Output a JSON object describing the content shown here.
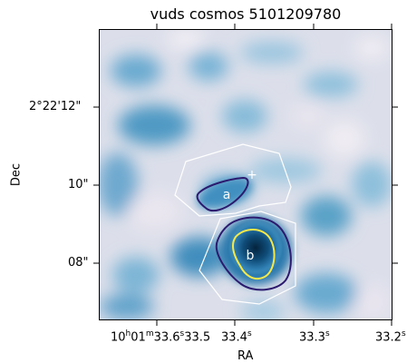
{
  "title": "vuds cosmos 5101209780",
  "xlabel": "RA",
  "ylabel": "Dec",
  "x_ticks": [
    {
      "h": "10",
      "m": "01",
      "s": "33.6",
      "tail": "33.5"
    },
    {
      "s": "33.4"
    },
    {
      "s": "33.3"
    },
    {
      "s": "33.2"
    }
  ],
  "y_ticks": [
    "2°22'12\"",
    "10\"",
    "08\""
  ],
  "markers": {
    "cross": "+",
    "region_a": "a",
    "region_b": "b"
  },
  "colors": {
    "image_light": "#e8e2ec",
    "image_mid": "#5aa2c8",
    "image_dark": "#0b3a5c",
    "region_outline": "#ffffff",
    "contour_outer": "#2b1a6e",
    "contour_inner": "#f5e94a"
  }
}
